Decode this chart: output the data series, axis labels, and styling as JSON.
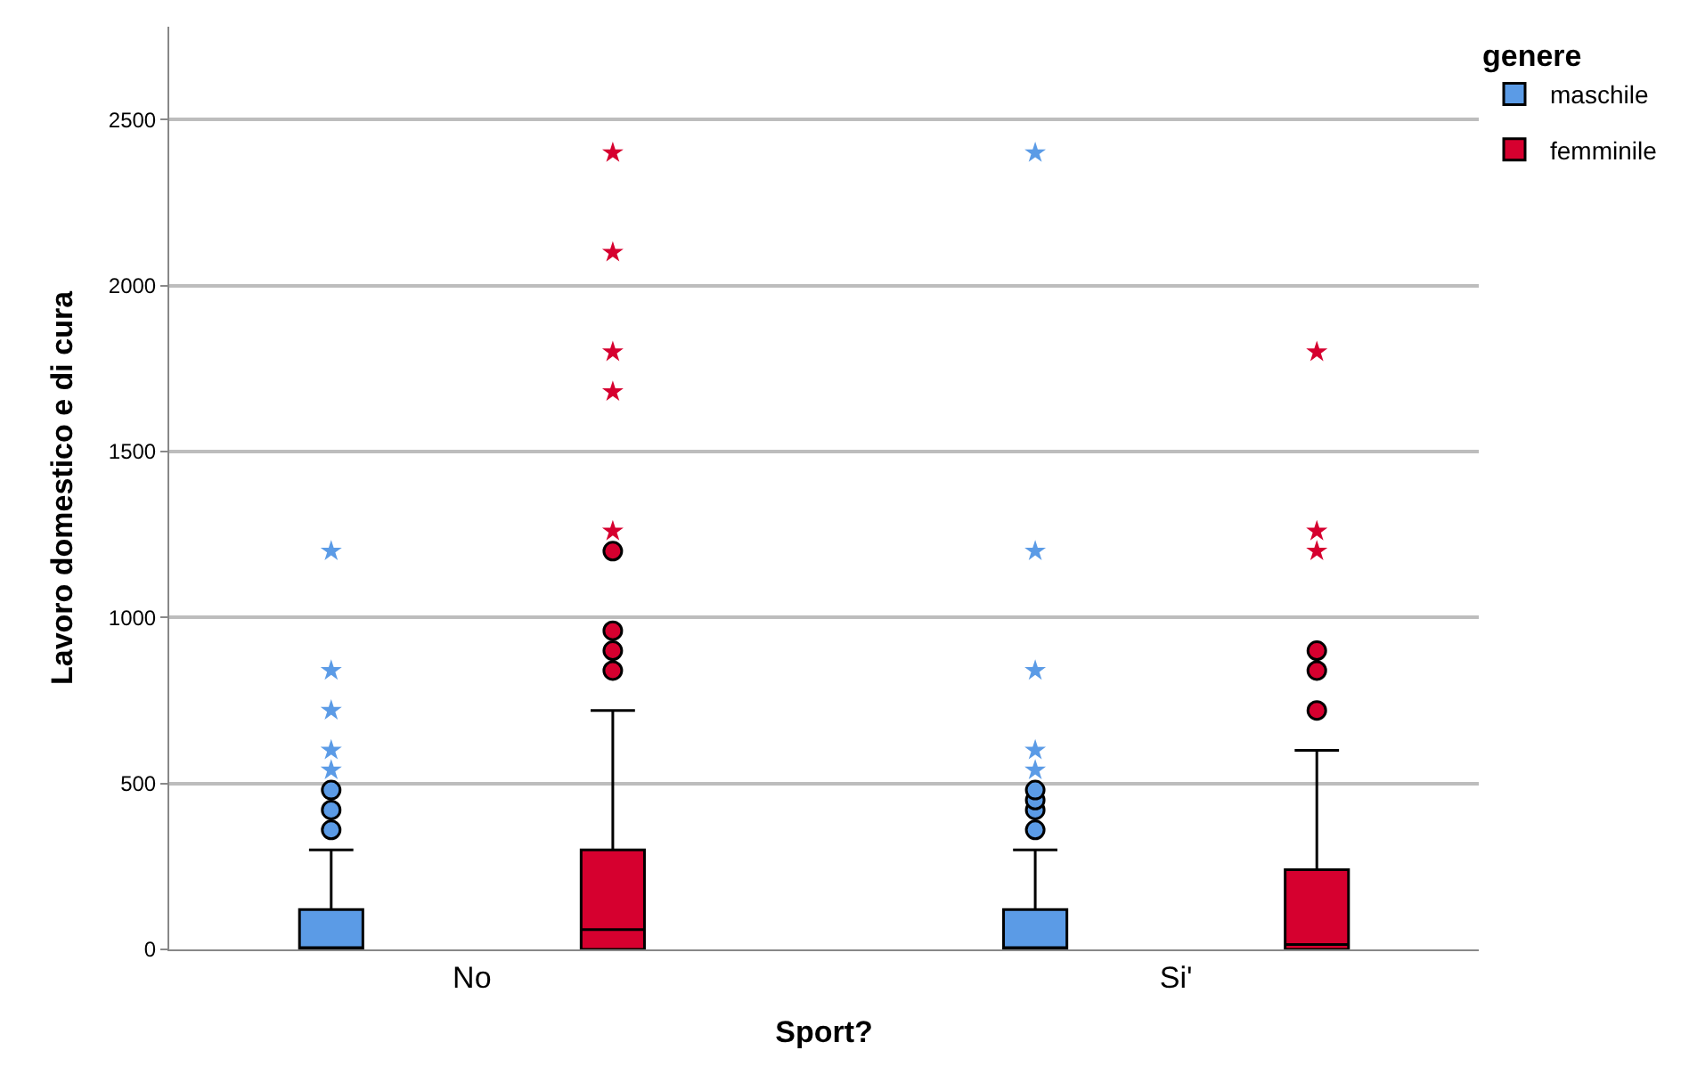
{
  "chart_data": {
    "type": "box",
    "xlabel": "Sport?",
    "ylabel": "Lavoro domestico e di cura",
    "legend_title": "genere",
    "legend": "top right",
    "grid": "y",
    "categories": [
      "No",
      "Si'"
    ],
    "ylim": [
      0,
      2780
    ],
    "yticks": [
      0,
      500,
      1000,
      1500,
      2000,
      2500
    ],
    "series": [
      {
        "name": "maschile",
        "color": "#5b9be6",
        "boxes": [
          {
            "q1": 0,
            "median": 0,
            "q3": 120,
            "high": 300,
            "outliers": [
              360,
              420,
              480,
              540,
              600,
              720,
              840,
              1200
            ]
          },
          {
            "q1": 0,
            "median": 0,
            "q3": 120,
            "high": 300,
            "outliers": [
              360,
              420,
              450,
              480,
              540,
              600,
              840,
              1200,
              2400
            ]
          }
        ]
      },
      {
        "name": "femminile",
        "color": "#d6002f",
        "boxes": [
          {
            "q1": 0,
            "median": 60,
            "q3": 300,
            "high": 720,
            "outliers": [
              840,
              900,
              960,
              1200,
              1260,
              1680,
              1800,
              2100,
              2400
            ]
          },
          {
            "q1": 0,
            "median": 15,
            "q3": 240,
            "high": 600,
            "outliers": [
              720,
              840,
              900,
              1200,
              1260,
              1800
            ]
          }
        ]
      }
    ]
  }
}
